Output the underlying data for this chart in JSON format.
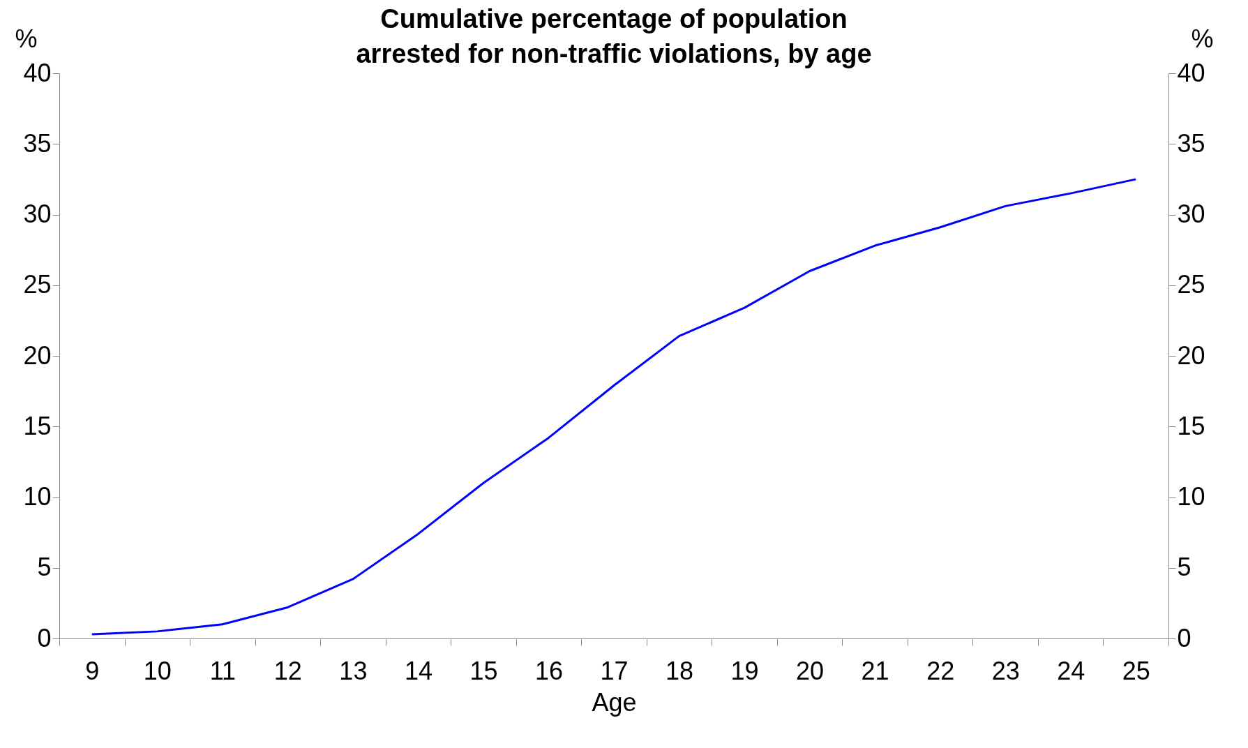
{
  "chart_data": {
    "type": "line",
    "title": "Cumulative percentage of population arrested for non-traffic violations, by age",
    "xlabel": "Age",
    "ylabel": "%",
    "y2label": "%",
    "categories": [
      "9",
      "10",
      "11",
      "12",
      "13",
      "14",
      "15",
      "16",
      "17",
      "18",
      "19",
      "20",
      "21",
      "22",
      "23",
      "24",
      "25"
    ],
    "series": [
      {
        "color": "#0000ff",
        "values": [
          0.3,
          0.5,
          1.0,
          2.2,
          4.2,
          7.4,
          11.0,
          14.2,
          17.9,
          21.4,
          23.4,
          26.0,
          27.8,
          29.1,
          30.6,
          31.5,
          32.5
        ]
      }
    ],
    "ylim": [
      0,
      40
    ],
    "yticks": [
      0,
      5,
      10,
      15,
      20,
      25,
      30,
      35,
      40
    ],
    "y2lim": [
      0,
      40
    ],
    "y2ticks": [
      0,
      5,
      10,
      15,
      20,
      25,
      30,
      35,
      40
    ],
    "grid": false,
    "legend": false,
    "marker": "none",
    "line_style": "solid"
  }
}
